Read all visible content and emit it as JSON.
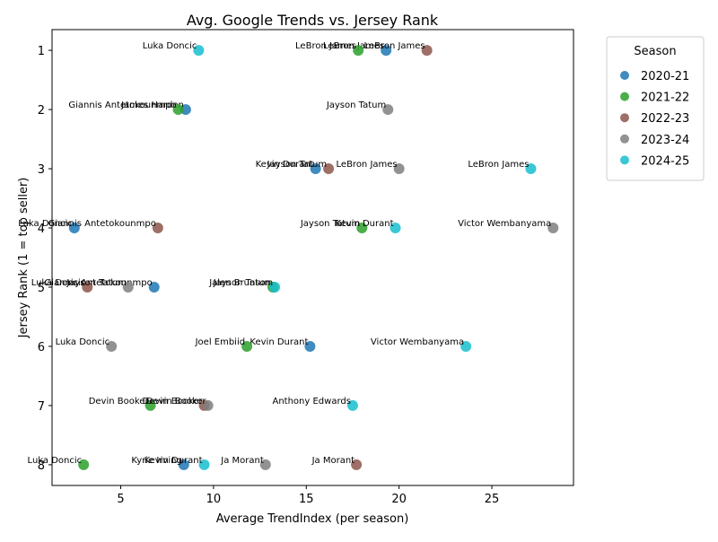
{
  "chart_data": {
    "type": "scatter",
    "title": "Avg. Google Trends vs. Jersey Rank",
    "xlabel": "Average TrendIndex (per season)",
    "ylabel": "Jersey Rank (1 = top seller)",
    "xlim": [
      1.3,
      29.4
    ],
    "ylim": [
      8.35,
      0.65
    ],
    "y_inverted": true,
    "x_ticks": [
      5,
      10,
      15,
      20,
      25
    ],
    "y_ticks": [
      1,
      2,
      3,
      4,
      5,
      6,
      7,
      8
    ],
    "grid": false,
    "legend": {
      "title": "Season",
      "placement": "outside-upper-right"
    },
    "series": [
      {
        "name": "2020-21",
        "color": "#1f77b4",
        "points": [
          {
            "x": 19.3,
            "y": 1,
            "label": "LeBron James"
          },
          {
            "x": 8.5,
            "y": 2,
            "label": "James Harden"
          },
          {
            "x": 15.5,
            "y": 3,
            "label": "Kevin Durant"
          },
          {
            "x": 2.5,
            "y": 4,
            "label": "Luka Doncic"
          },
          {
            "x": 6.8,
            "y": 5,
            "label": "Giannis Antetokounmpo"
          },
          {
            "x": 15.2,
            "y": 6,
            "label": "Kevin Durant"
          },
          {
            "x": 8.4,
            "y": 8,
            "label": "Kyrie Irving"
          }
        ]
      },
      {
        "name": "2021-22",
        "color": "#2ca02c",
        "points": [
          {
            "x": 17.8,
            "y": 1,
            "label": "LeBron James"
          },
          {
            "x": 8.1,
            "y": 2,
            "label": "Giannis Antetokounmpo"
          },
          {
            "x": 18.0,
            "y": 4,
            "label": "Jayson Tatum"
          },
          {
            "x": 13.2,
            "y": 5,
            "label": "Jalen Brunson"
          },
          {
            "x": 11.8,
            "y": 6,
            "label": "Joel Embiid"
          },
          {
            "x": 6.6,
            "y": 7,
            "label": "Devin Booker"
          },
          {
            "x": 3.0,
            "y": 8,
            "label": "Luka Doncic"
          }
        ]
      },
      {
        "name": "2022-23",
        "color": "#8c564b",
        "points": [
          {
            "x": 21.5,
            "y": 1,
            "label": "LeBron James"
          },
          {
            "x": 16.2,
            "y": 3,
            "label": "Jayson Tatum"
          },
          {
            "x": 7.0,
            "y": 4,
            "label": "Giannis Antetokounmpo"
          },
          {
            "x": 3.2,
            "y": 5,
            "label": "Luka Doncic"
          },
          {
            "x": 9.5,
            "y": 7,
            "label": "Devin Booker"
          },
          {
            "x": 17.7,
            "y": 8,
            "label": "Ja Morant"
          }
        ]
      },
      {
        "name": "2023-24",
        "color": "#7f7f7f",
        "points": [
          {
            "x": 19.4,
            "y": 2,
            "label": "Jayson Tatum"
          },
          {
            "x": 20.0,
            "y": 3,
            "label": "LeBron James"
          },
          {
            "x": 28.3,
            "y": 4,
            "label": "Victor Wembanyama"
          },
          {
            "x": 5.4,
            "y": 5,
            "label": "Jayson Tatum"
          },
          {
            "x": 4.5,
            "y": 6,
            "label": "Luka Doncic"
          },
          {
            "x": 9.7,
            "y": 7,
            "label": "Devin Booker"
          },
          {
            "x": 12.8,
            "y": 8,
            "label": "Ja Morant"
          }
        ]
      },
      {
        "name": "2024-25",
        "color": "#17becf",
        "points": [
          {
            "x": 9.2,
            "y": 1,
            "label": "Luka Doncic"
          },
          {
            "x": 27.1,
            "y": 3,
            "label": "LeBron James"
          },
          {
            "x": 19.8,
            "y": 4,
            "label": "Kevin Durant"
          },
          {
            "x": 13.3,
            "y": 5,
            "label": "Jayson Tatum"
          },
          {
            "x": 23.6,
            "y": 6,
            "label": "Victor Wembanyama"
          },
          {
            "x": 17.5,
            "y": 7,
            "label": "Anthony Edwards"
          },
          {
            "x": 9.5,
            "y": 8,
            "label": "Kevin Durant"
          }
        ]
      }
    ]
  }
}
